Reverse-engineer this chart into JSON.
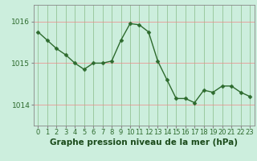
{
  "x": [
    0,
    1,
    2,
    3,
    4,
    5,
    6,
    7,
    8,
    9,
    10,
    11,
    12,
    13,
    14,
    15,
    16,
    17,
    18,
    19,
    20,
    21,
    22,
    23
  ],
  "y": [
    1015.75,
    1015.55,
    1015.35,
    1015.2,
    1015.0,
    1014.85,
    1015.0,
    1015.0,
    1015.05,
    1015.55,
    1015.95,
    1015.92,
    1015.75,
    1015.05,
    1014.6,
    1014.15,
    1014.15,
    1014.05,
    1014.35,
    1014.3,
    1014.45,
    1014.45,
    1014.3,
    1014.2
  ],
  "line_color": "#2d6a2d",
  "marker": "D",
  "marker_size": 2.5,
  "line_width": 1.0,
  "bg_color": "#cceedd",
  "grid_color_v": "#88bb88",
  "grid_color_h": "#ee8888",
  "yticks": [
    1014,
    1015,
    1016
  ],
  "ylim": [
    1013.5,
    1016.4
  ],
  "xlim": [
    -0.5,
    23.5
  ],
  "xlabel": "Graphe pression niveau de la mer (hPa)",
  "xlabel_color": "#1a4a1a",
  "xlabel_fontsize": 7.5,
  "xtick_labels": [
    "0",
    "1",
    "2",
    "3",
    "4",
    "5",
    "6",
    "7",
    "8",
    "9",
    "10",
    "11",
    "12",
    "13",
    "14",
    "15",
    "16",
    "17",
    "18",
    "19",
    "20",
    "21",
    "22",
    "23"
  ],
  "tick_color": "#2d6a2d",
  "tick_fontsize": 6,
  "ytick_fontsize": 6.5,
  "spine_color": "#888888"
}
